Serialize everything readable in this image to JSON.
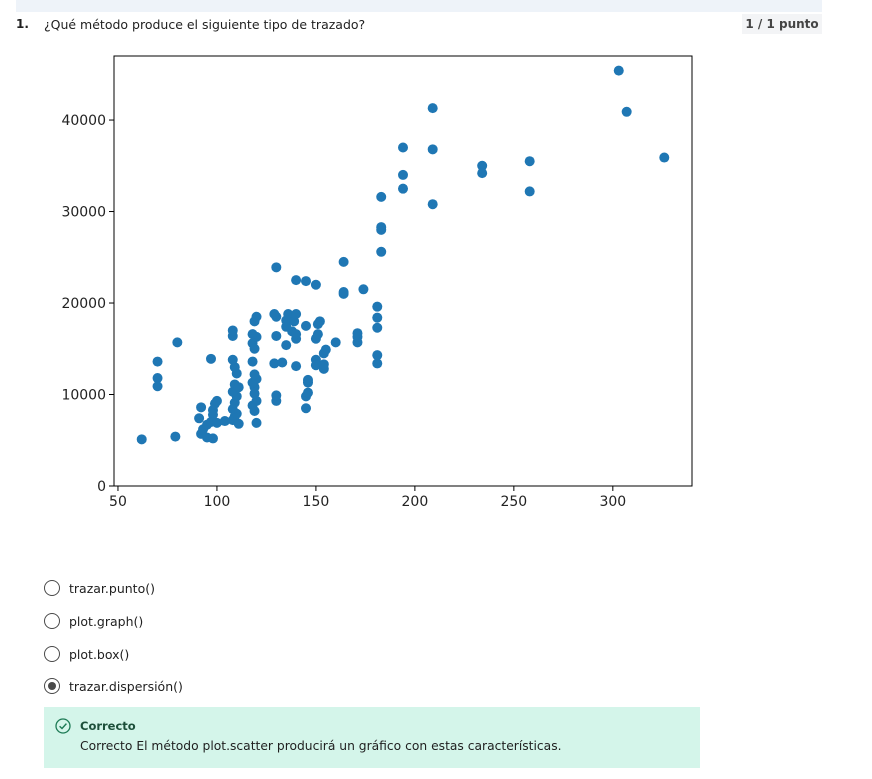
{
  "question": {
    "number": "1.",
    "text": "¿Qué método produce el siguiente tipo de trazado?",
    "score": "1 / 1 punto"
  },
  "chart_data": {
    "type": "scatter",
    "title": "",
    "xlabel": "",
    "ylabel": "",
    "xlim": [
      48,
      340
    ],
    "ylim": [
      0,
      47000
    ],
    "xticks": [
      50,
      100,
      150,
      200,
      250,
      300
    ],
    "yticks": [
      0,
      10000,
      20000,
      30000,
      40000
    ],
    "grid": false,
    "color": "#1f77b4",
    "points": [
      [
        62,
        5100
      ],
      [
        79,
        5400
      ],
      [
        92,
        5700
      ],
      [
        93,
        6200
      ],
      [
        95,
        6700
      ],
      [
        95,
        5300
      ],
      [
        98,
        5200
      ],
      [
        91,
        7400
      ],
      [
        92,
        8600
      ],
      [
        98,
        8300
      ],
      [
        99,
        9000
      ],
      [
        100,
        9300
      ],
      [
        98,
        7800
      ],
      [
        97,
        7000
      ],
      [
        100,
        6900
      ],
      [
        104,
        7100
      ],
      [
        108,
        7200
      ],
      [
        109,
        7600
      ],
      [
        110,
        7900
      ],
      [
        111,
        6800
      ],
      [
        108,
        8400
      ],
      [
        109,
        9100
      ],
      [
        110,
        9800
      ],
      [
        108,
        10300
      ],
      [
        109,
        11100
      ],
      [
        111,
        10800
      ],
      [
        110,
        12300
      ],
      [
        109,
        13000
      ],
      [
        108,
        13800
      ],
      [
        108,
        16400
      ],
      [
        108,
        17000
      ],
      [
        70,
        13600
      ],
      [
        70,
        11800
      ],
      [
        70,
        10900
      ],
      [
        80,
        15700
      ],
      [
        97,
        13900
      ],
      [
        120,
        6900
      ],
      [
        119,
        8200
      ],
      [
        118,
        8800
      ],
      [
        120,
        9300
      ],
      [
        119,
        10100
      ],
      [
        119,
        10800
      ],
      [
        118,
        11300
      ],
      [
        120,
        11700
      ],
      [
        119,
        12200
      ],
      [
        118,
        13600
      ],
      [
        118,
        15600
      ],
      [
        119,
        15000
      ],
      [
        120,
        16300
      ],
      [
        118,
        16600
      ],
      [
        119,
        18000
      ],
      [
        120,
        18500
      ],
      [
        130,
        9300
      ],
      [
        130,
        9900
      ],
      [
        129,
        13400
      ],
      [
        130,
        16400
      ],
      [
        130,
        18500
      ],
      [
        129,
        18800
      ],
      [
        133,
        13500
      ],
      [
        135,
        15400
      ],
      [
        135,
        17400
      ],
      [
        135,
        18100
      ],
      [
        136,
        18800
      ],
      [
        138,
        16900
      ],
      [
        138,
        18300
      ],
      [
        139,
        18000
      ],
      [
        140,
        13100
      ],
      [
        140,
        16100
      ],
      [
        140,
        16600
      ],
      [
        140,
        18800
      ],
      [
        145,
        8500
      ],
      [
        145,
        9800
      ],
      [
        146,
        10200
      ],
      [
        146,
        11300
      ],
      [
        146,
        11600
      ],
      [
        145,
        17500
      ],
      [
        140,
        22500
      ],
      [
        145,
        22400
      ],
      [
        150,
        22000
      ],
      [
        150,
        13800
      ],
      [
        150,
        13200
      ],
      [
        150,
        16100
      ],
      [
        151,
        16600
      ],
      [
        151,
        17700
      ],
      [
        152,
        18000
      ],
      [
        154,
        12800
      ],
      [
        154,
        13300
      ],
      [
        154,
        14500
      ],
      [
        155,
        14900
      ],
      [
        160,
        15700
      ],
      [
        164,
        21000
      ],
      [
        164,
        21200
      ],
      [
        164,
        24500
      ],
      [
        171,
        15700
      ],
      [
        171,
        16300
      ],
      [
        171,
        16700
      ],
      [
        174,
        21500
      ],
      [
        130,
        23900
      ],
      [
        181,
        13400
      ],
      [
        181,
        14300
      ],
      [
        181,
        17300
      ],
      [
        181,
        18400
      ],
      [
        181,
        19600
      ],
      [
        183,
        25600
      ],
      [
        183,
        28000
      ],
      [
        183,
        28300
      ],
      [
        183,
        31600
      ],
      [
        194,
        32500
      ],
      [
        194,
        34000
      ],
      [
        194,
        37000
      ],
      [
        209,
        30800
      ],
      [
        209,
        36800
      ],
      [
        209,
        41300
      ],
      [
        234,
        35000
      ],
      [
        234,
        34200
      ],
      [
        258,
        35500
      ],
      [
        258,
        32200
      ],
      [
        303,
        45400
      ],
      [
        307,
        40900
      ],
      [
        326,
        35900
      ]
    ]
  },
  "options": [
    {
      "label": "trazar.punto()",
      "selected": false
    },
    {
      "label": "plot.graph()",
      "selected": false
    },
    {
      "label": "plot.box()",
      "selected": false
    },
    {
      "label": "trazar.dispersión()",
      "selected": true
    }
  ],
  "feedback": {
    "title": "Correcto",
    "text": "Correcto El método plot.scatter producirá un gráfico con estas características.",
    "color": "#1d7a55",
    "icon": "check-circle-icon"
  }
}
